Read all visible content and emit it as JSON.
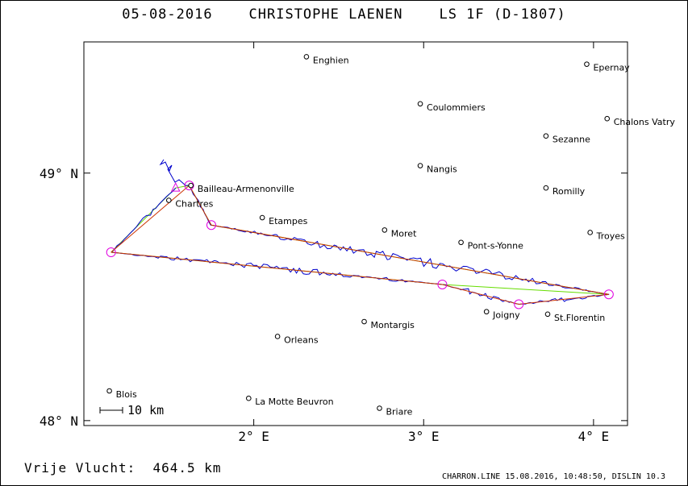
{
  "header": {
    "title": "05-08-2016    CHRISTOPHE LAENEN    LS 1F (D-1807)"
  },
  "footer": {
    "distance_label": "Vrije Vlucht:",
    "distance_value": "464.5 km",
    "credit": "CHARRON.LINE 15.08.2016, 10:48:50, DISLIN 10.3"
  },
  "map": {
    "lon_range": [
      1.0,
      4.2
    ],
    "lat_range": [
      47.98,
      49.53
    ],
    "x_ticks": [
      {
        "lon": 2,
        "label": "2° E"
      },
      {
        "lon": 3,
        "label": "3° E"
      },
      {
        "lon": 4,
        "label": "4° E"
      }
    ],
    "y_ticks": [
      {
        "lat": 49,
        "label": "49° N"
      },
      {
        "lat": 48,
        "label": "48° N"
      }
    ],
    "scale_bar": {
      "label": "10 km",
      "km": 10
    },
    "cities": [
      {
        "name": "Enghien",
        "lon": 2.31,
        "lat": 49.47
      },
      {
        "name": "Epernay",
        "lon": 3.96,
        "lat": 49.44
      },
      {
        "name": "Coulommiers",
        "lon": 2.98,
        "lat": 49.28
      },
      {
        "name": "Chalons Vatry",
        "lon": 4.08,
        "lat": 49.22
      },
      {
        "name": "Sezanne",
        "lon": 3.72,
        "lat": 49.15
      },
      {
        "name": "Nangis",
        "lon": 2.98,
        "lat": 49.03
      },
      {
        "name": "Romilly",
        "lon": 3.72,
        "lat": 48.94
      },
      {
        "name": "Bailleau-Armenonville",
        "lon": 1.63,
        "lat": 48.95
      },
      {
        "name": "Chartres",
        "lon": 1.5,
        "lat": 48.89
      },
      {
        "name": "Etampes",
        "lon": 2.05,
        "lat": 48.82
      },
      {
        "name": "Moret",
        "lon": 2.77,
        "lat": 48.77
      },
      {
        "name": "Troyes",
        "lon": 3.98,
        "lat": 48.76
      },
      {
        "name": "Pont-s-Yonne",
        "lon": 3.22,
        "lat": 48.72
      },
      {
        "name": "Joigny",
        "lon": 3.37,
        "lat": 48.44
      },
      {
        "name": "St.Florentin",
        "lon": 3.73,
        "lat": 48.43
      },
      {
        "name": "Montargis",
        "lon": 2.65,
        "lat": 48.4
      },
      {
        "name": "Orleans",
        "lon": 2.14,
        "lat": 48.34
      },
      {
        "name": "Blois",
        "lon": 1.15,
        "lat": 48.12
      },
      {
        "name": "La Motte Beuvron",
        "lon": 1.97,
        "lat": 48.09
      },
      {
        "name": "Briare",
        "lon": 2.74,
        "lat": 48.05
      }
    ],
    "turnpoints": [
      {
        "lon": 1.62,
        "lat": 48.95
      },
      {
        "lon": 1.75,
        "lat": 48.79
      },
      {
        "lon": 4.09,
        "lat": 48.51
      },
      {
        "lon": 3.56,
        "lat": 48.47
      },
      {
        "lon": 3.11,
        "lat": 48.55
      },
      {
        "lon": 1.16,
        "lat": 48.68
      }
    ],
    "start_point": {
      "lon": 1.54,
      "lat": 48.94
    },
    "colors": {
      "track": "#0000cc",
      "task_line": "#cc3300",
      "triangle_line": "#66dd00",
      "turnpoint": "#e000e0",
      "frame": "#000000"
    }
  }
}
